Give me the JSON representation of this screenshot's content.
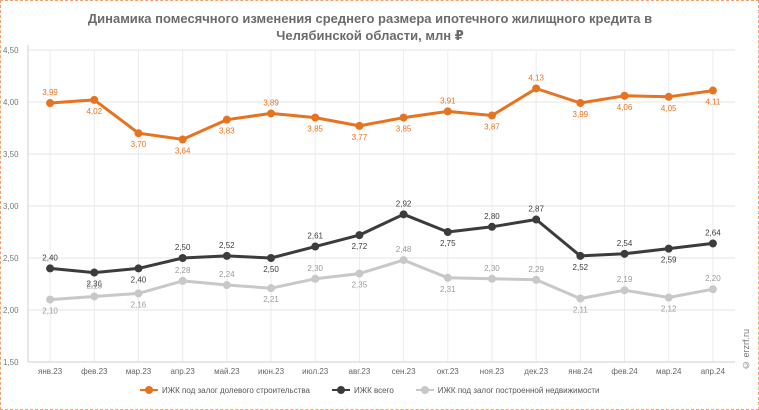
{
  "chart_data": {
    "type": "line",
    "title": "Динамика помесячного изменения среднего размера ипотечного жилищного кредита в Челябинской области, млн ₽",
    "categories": [
      "янв.23",
      "фев.23",
      "мар.23",
      "апр.23",
      "май.23",
      "июн.23",
      "июл.23",
      "авг.23",
      "сен.23",
      "окт.23",
      "ноя.23",
      "дек.23",
      "янв.24",
      "фев.24",
      "мар.24",
      "апр.24"
    ],
    "ylim": [
      1.5,
      4.5
    ],
    "yticks": [
      "1,50",
      "2,00",
      "2,50",
      "3,00",
      "3,50",
      "4,00",
      "4,50"
    ],
    "ytick_values": [
      1.5,
      2.0,
      2.5,
      3.0,
      3.5,
      4.0,
      4.5
    ],
    "grid": true,
    "legend_position": "bottom",
    "series": [
      {
        "name": "ИЖК под залог долевого строительства",
        "color": "#e8731f",
        "values": [
          3.99,
          4.02,
          3.7,
          3.64,
          3.83,
          3.89,
          3.85,
          3.77,
          3.85,
          3.91,
          3.87,
          4.13,
          3.99,
          4.06,
          4.05,
          4.11
        ],
        "labels": [
          "3,99",
          "4,02",
          "3,70",
          "3,64",
          "3,83",
          "3,89",
          "3,85",
          "3,77",
          "3,85",
          "3,91",
          "3,87",
          "4,13",
          "3,99",
          "4,06",
          "4,05",
          "4,11"
        ]
      },
      {
        "name": "ИЖК всего",
        "color": "#3c3c3c",
        "values": [
          2.4,
          2.36,
          2.4,
          2.5,
          2.52,
          2.5,
          2.61,
          2.72,
          2.92,
          2.75,
          2.8,
          2.87,
          2.52,
          2.54,
          2.59,
          2.64
        ],
        "labels": [
          "2,40",
          "2,36",
          "2,40",
          "2,50",
          "2,52",
          "2,50",
          "2,61",
          "2,72",
          "2,92",
          "2,75",
          "2,80",
          "2,87",
          "2,52",
          "2,54",
          "2,59",
          "2,64"
        ]
      },
      {
        "name": "ИЖК под залог построенной недвижимости",
        "color": "#c8c8c8",
        "values": [
          2.1,
          2.13,
          2.16,
          2.28,
          2.24,
          2.21,
          2.3,
          2.35,
          2.48,
          2.31,
          2.3,
          2.29,
          2.11,
          2.19,
          2.12,
          2.2
        ],
        "labels": [
          "2,10",
          "2,13",
          "2,16",
          "2,28",
          "2,24",
          "2,21",
          "2,30",
          "2,35",
          "2,48",
          "2,31",
          "2,30",
          "2,29",
          "2,11",
          "2,19",
          "2,12",
          "2,20"
        ]
      }
    ]
  },
  "watermark": "© erzrf.ru"
}
